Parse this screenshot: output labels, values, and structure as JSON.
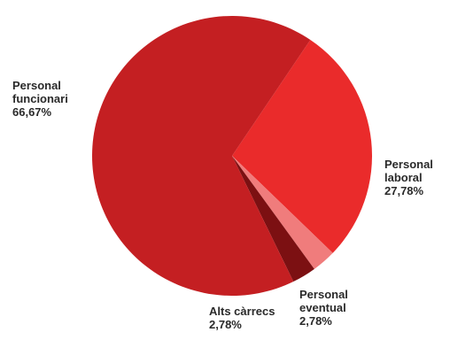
{
  "chart_data": {
    "type": "pie",
    "title": "",
    "slices": [
      {
        "label_lines": [
          "Personal",
          "laboral"
        ],
        "value_text": "27,78%",
        "value": 27.78,
        "color": "#ea2b2b"
      },
      {
        "label_lines": [
          "Personal",
          "eventual"
        ],
        "value_text": "2,78%",
        "value": 2.78,
        "color": "#f07c7c"
      },
      {
        "label_lines": [
          "Alts càrrecs"
        ],
        "value_text": "2,78%",
        "value": 2.78,
        "color": "#7c1012"
      },
      {
        "label_lines": [
          "Personal",
          "funcionari"
        ],
        "value_text": "66,67%",
        "value": 66.67,
        "color": "#c41f22"
      }
    ]
  }
}
